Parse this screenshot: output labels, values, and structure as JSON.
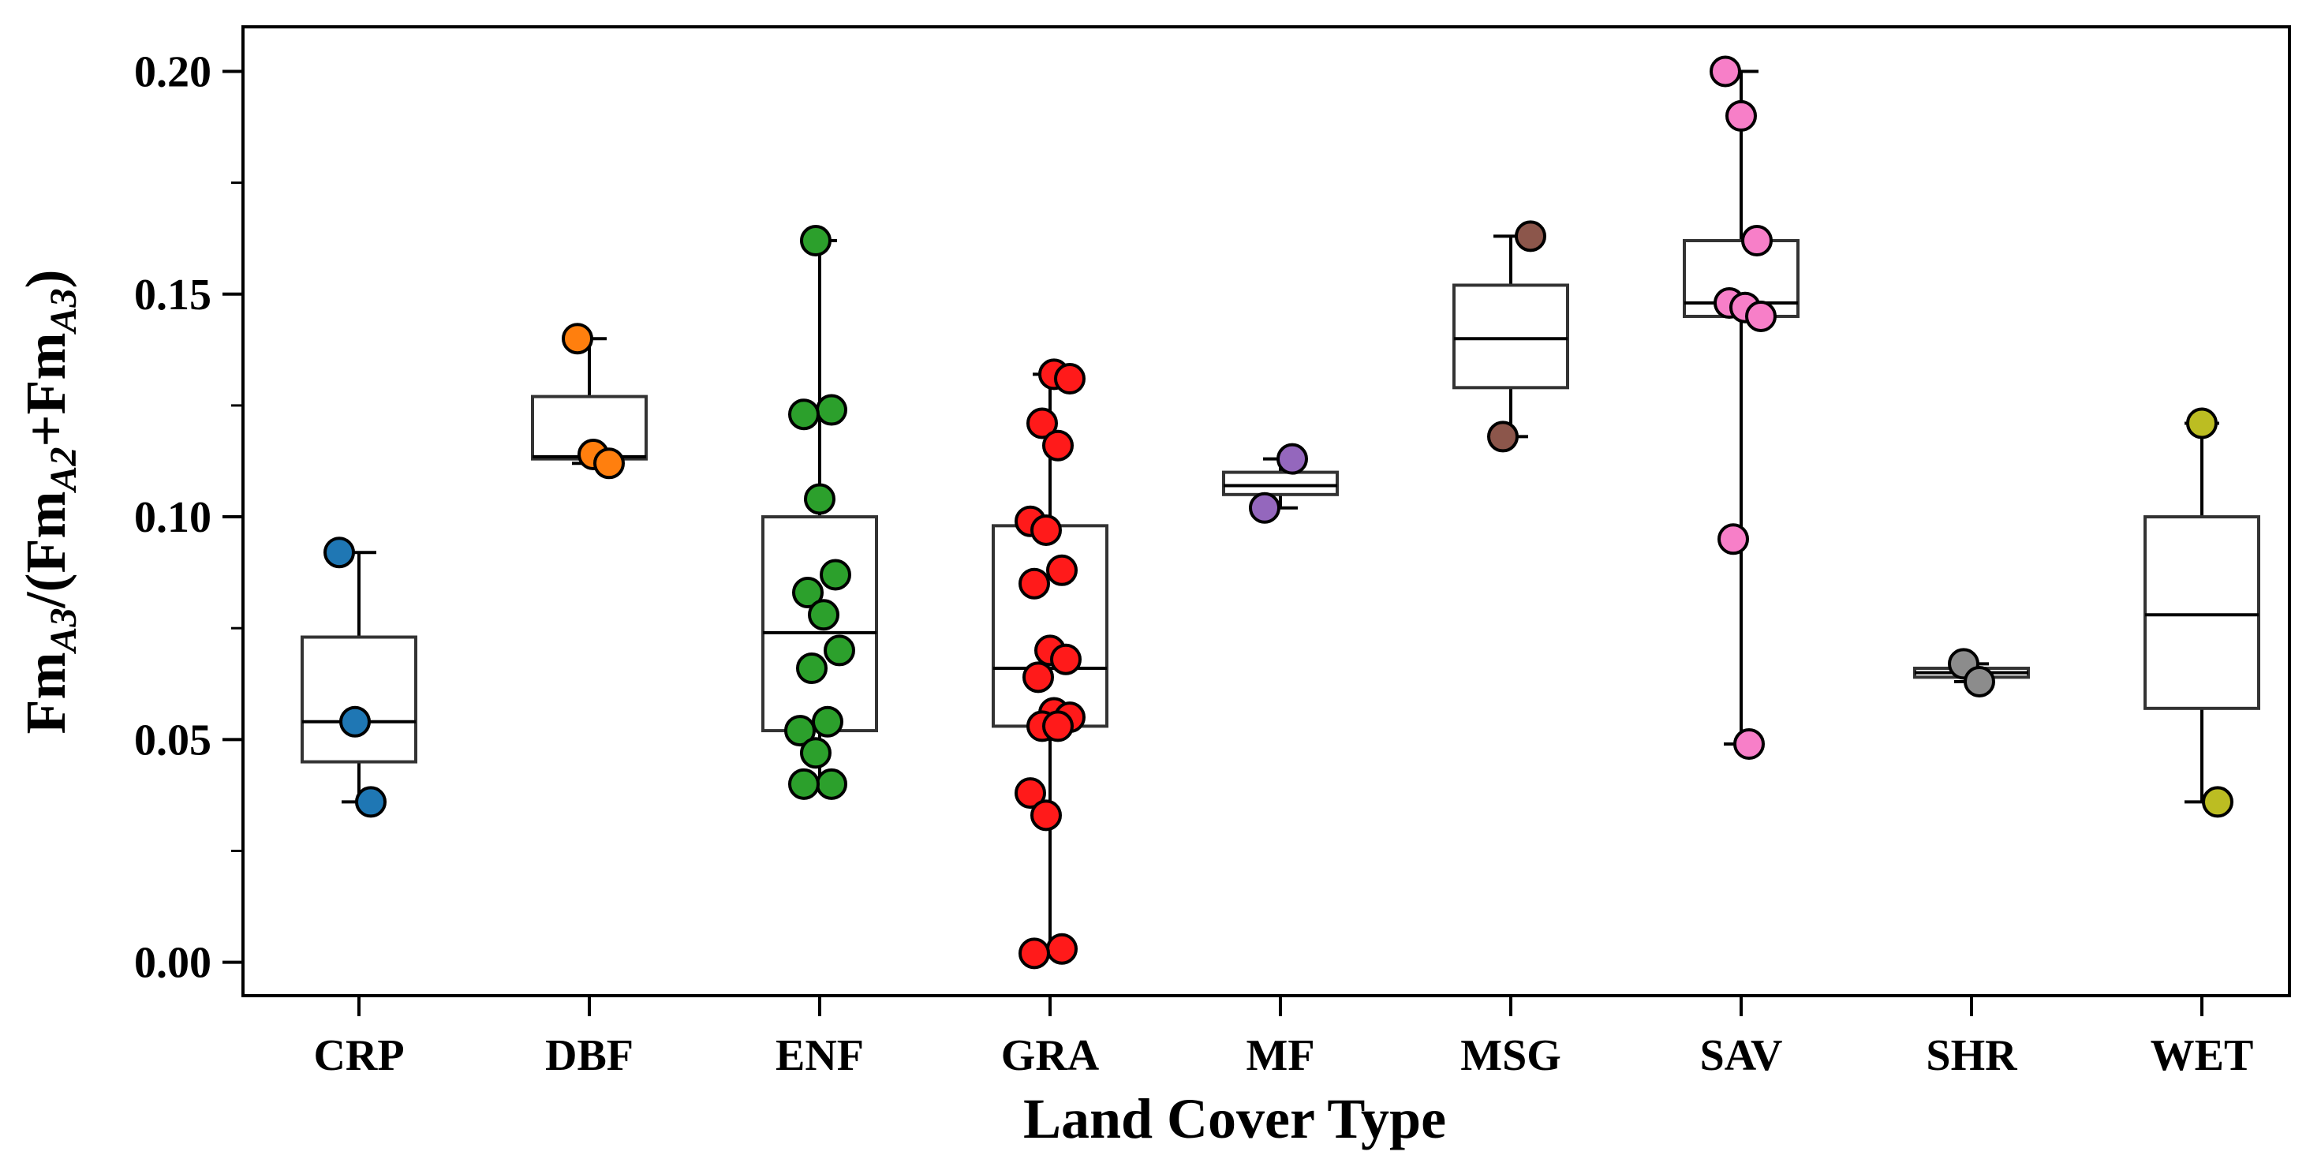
{
  "chart_data": {
    "type": "box-strip",
    "title": "",
    "xlabel": "Land Cover Type",
    "ylabel": {
      "base": "Fm",
      "sub1": "A3",
      "mid1": "/(Fm",
      "sub2": "A2",
      "mid2": "+Fm",
      "sub3": "A3",
      "end": ")"
    },
    "ylim": [
      -0.0075,
      0.21
    ],
    "yticks_major": [
      0.0,
      0.05,
      0.1,
      0.15,
      0.2
    ],
    "ytick_labels": [
      "0.00",
      "0.05",
      "0.10",
      "0.15",
      "0.20"
    ],
    "yticks_minor": [
      0.025,
      0.075,
      0.125,
      0.175
    ],
    "categories": [
      "CRP",
      "DBF",
      "ENF",
      "GRA",
      "MF",
      "MSG",
      "SAV",
      "SHR",
      "WET"
    ],
    "boxes": [
      {
        "name": "CRP",
        "color": "#1f77b4",
        "q1": 0.045,
        "median": 0.054,
        "q3": 0.073,
        "whisker_low": 0.036,
        "whisker_high": 0.092,
        "points": [
          0.092,
          0.054,
          0.036
        ]
      },
      {
        "name": "DBF",
        "color": "#ff7f0e",
        "q1": 0.113,
        "median": 0.1135,
        "q3": 0.127,
        "whisker_low": 0.112,
        "whisker_high": 0.14,
        "points": [
          0.14,
          0.114,
          0.112
        ]
      },
      {
        "name": "ENF",
        "color": "#2ca02c",
        "q1": 0.052,
        "median": 0.074,
        "q3": 0.1,
        "whisker_low": 0.04,
        "whisker_high": 0.162,
        "points": [
          0.162,
          0.124,
          0.123,
          0.104,
          0.087,
          0.083,
          0.078,
          0.07,
          0.066,
          0.054,
          0.052,
          0.047,
          0.04,
          0.04
        ]
      },
      {
        "name": "GRA",
        "color": "#ff1a1a",
        "q1": 0.053,
        "median": 0.066,
        "q3": 0.098,
        "whisker_low": 0.002,
        "whisker_high": 0.132,
        "points": [
          0.132,
          0.131,
          0.121,
          0.116,
          0.099,
          0.097,
          0.088,
          0.085,
          0.07,
          0.068,
          0.064,
          0.056,
          0.055,
          0.053,
          0.053,
          0.038,
          0.033,
          0.003,
          0.002
        ]
      },
      {
        "name": "MF",
        "color": "#9467bd",
        "q1": 0.105,
        "median": 0.107,
        "q3": 0.11,
        "whisker_low": 0.102,
        "whisker_high": 0.113,
        "points": [
          0.113,
          0.102
        ]
      },
      {
        "name": "MSG",
        "color": "#8c564b",
        "q1": 0.129,
        "median": 0.14,
        "q3": 0.152,
        "whisker_low": 0.118,
        "whisker_high": 0.163,
        "points": [
          0.163,
          0.118
        ]
      },
      {
        "name": "SAV",
        "color": "#f77fc8",
        "q1": 0.145,
        "median": 0.148,
        "q3": 0.162,
        "whisker_low": 0.049,
        "whisker_high": 0.2,
        "points": [
          0.2,
          0.19,
          0.162,
          0.148,
          0.147,
          0.145,
          0.095,
          0.049
        ]
      },
      {
        "name": "SHR",
        "color": "#8c8c8c",
        "q1": 0.064,
        "median": 0.065,
        "q3": 0.066,
        "whisker_low": 0.063,
        "whisker_high": 0.067,
        "points": [
          0.067,
          0.063
        ]
      },
      {
        "name": "WET",
        "color": "#bcbd22",
        "q1": 0.057,
        "median": 0.078,
        "q3": 0.1,
        "whisker_low": 0.036,
        "whisker_high": 0.121,
        "points": [
          0.121,
          0.036
        ]
      }
    ]
  }
}
